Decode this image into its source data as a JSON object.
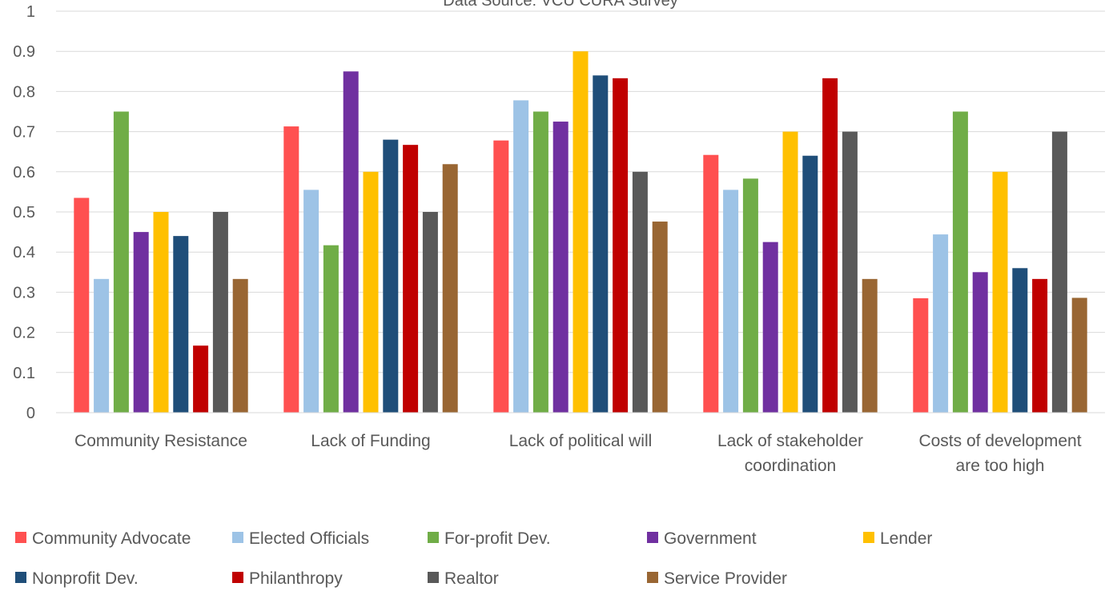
{
  "chart_data": {
    "type": "bar",
    "subtitle": "Data Source: VCU CURA Survey",
    "categories": [
      "Community Resistance",
      "Lack of Funding",
      "Lack of political will",
      "Lack of stakeholder coordination",
      "Costs of development are too high"
    ],
    "category_lines": [
      [
        "Community Resistance"
      ],
      [
        "Lack of Funding"
      ],
      [
        "Lack of political will"
      ],
      [
        "Lack of stakeholder",
        "coordination"
      ],
      [
        "Costs of development",
        "are too high"
      ]
    ],
    "yticks": [
      "0",
      "0.1",
      "0.2",
      "0.3",
      "0.4",
      "0.5",
      "0.6",
      "0.7",
      "0.8",
      "0.9",
      "1"
    ],
    "ylim": [
      0,
      1
    ],
    "grid": true,
    "legend_position": "bottom",
    "series": [
      {
        "name": "Community Advocate",
        "color": "#ff5050",
        "values": [
          0.535,
          0.713,
          0.678,
          0.642,
          0.285
        ]
      },
      {
        "name": "Elected Officials",
        "color": "#9dc3e6",
        "values": [
          0.333,
          0.555,
          0.778,
          0.555,
          0.444
        ]
      },
      {
        "name": "For-profit Dev.",
        "color": "#70ad47",
        "values": [
          0.75,
          0.417,
          0.75,
          0.583,
          0.75
        ]
      },
      {
        "name": "Government",
        "color": "#7030a0",
        "values": [
          0.45,
          0.85,
          0.725,
          0.425,
          0.35
        ]
      },
      {
        "name": "Lender",
        "color": "#ffc000",
        "values": [
          0.5,
          0.6,
          0.9,
          0.7,
          0.6
        ]
      },
      {
        "name": "Nonprofit Dev.",
        "color": "#1f4e79",
        "values": [
          0.44,
          0.68,
          0.84,
          0.64,
          0.36
        ]
      },
      {
        "name": "Philanthropy",
        "color": "#c00000",
        "values": [
          0.167,
          0.667,
          0.833,
          0.833,
          0.333
        ]
      },
      {
        "name": "Realtor",
        "color": "#595959",
        "values": [
          0.5,
          0.5,
          0.6,
          0.7,
          0.7
        ]
      },
      {
        "name": "Service Provider",
        "color": "#996633",
        "values": [
          0.333,
          0.619,
          0.476,
          0.333,
          0.286
        ]
      }
    ]
  }
}
